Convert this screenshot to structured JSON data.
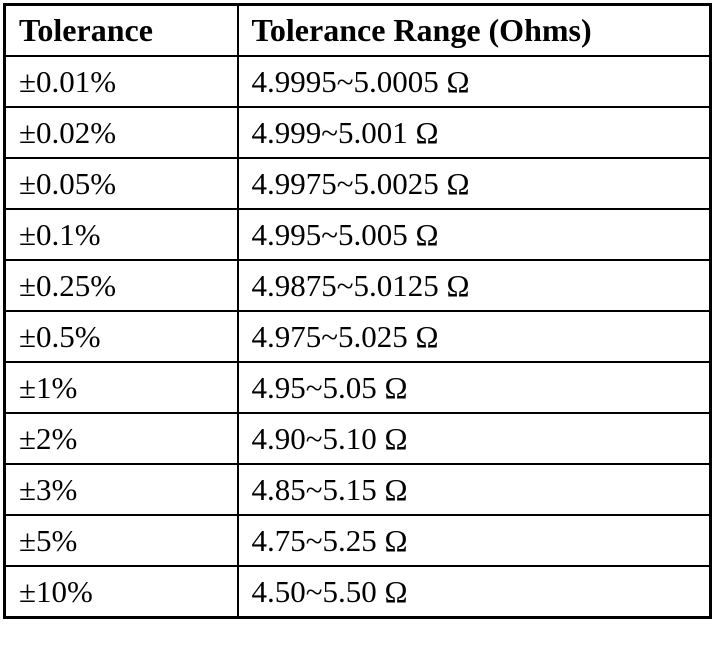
{
  "table": {
    "columns": {
      "tolerance": "Tolerance",
      "range": "Tolerance Range (Ohms)"
    },
    "rows": [
      {
        "tolerance": "±0.01%",
        "range": "4.9995~5.0005 Ω"
      },
      {
        "tolerance": "±0.02%",
        "range": "4.999~5.001 Ω"
      },
      {
        "tolerance": "±0.05%",
        "range": "4.9975~5.0025 Ω"
      },
      {
        "tolerance": "±0.1%",
        "range": "4.995~5.005 Ω"
      },
      {
        "tolerance": "±0.25%",
        "range": "4.9875~5.0125 Ω"
      },
      {
        "tolerance": "±0.5%",
        "range": "4.975~5.025 Ω"
      },
      {
        "tolerance": "±1%",
        "range": "4.95~5.05 Ω"
      },
      {
        "tolerance": "±2%",
        "range": "4.90~5.10 Ω"
      },
      {
        "tolerance": "±3%",
        "range": "4.85~5.15 Ω"
      },
      {
        "tolerance": "±5%",
        "range": "4.75~5.25 Ω"
      },
      {
        "tolerance": "±10%",
        "range": "4.50~5.50 Ω"
      }
    ],
    "border_color": "#000000",
    "text_color": "#000000",
    "background_color": "#ffffff"
  }
}
